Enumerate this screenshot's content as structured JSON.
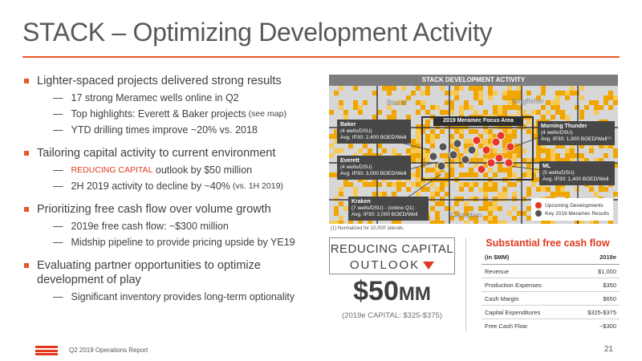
{
  "title": "STACK – Optimizing Development Activity",
  "bullets": [
    {
      "text": "Lighter-spaced projects delivered strong results",
      "subs": [
        {
          "text": "17 strong Meramec wells online in Q2",
          "small": ""
        },
        {
          "text": "Top highlights: Everett & Baker projects",
          "small": "(see map)"
        },
        {
          "text": "YTD drilling times improve ~20% vs. 2018",
          "small": ""
        }
      ]
    },
    {
      "text": "Tailoring capital activity to current environment",
      "subs": [
        {
          "red": "REDUCING CAPITAL",
          "text": "outlook by $50 million",
          "small": ""
        },
        {
          "text": "2H 2019 activity to decline by ~40%",
          "small": "(vs. 1H 2019)"
        }
      ]
    },
    {
      "text": "Prioritizing free cash flow over volume growth",
      "subs": [
        {
          "text": "2019e free cash flow: ~$300 million",
          "small": ""
        },
        {
          "text": "Midship pipeline to provide pricing upside by YE19",
          "small": ""
        }
      ]
    },
    {
      "text": "Evaluating partner opportunities to optimize development of play",
      "subs": [
        {
          "text": "Significant inventory provides long-term optionality",
          "small": ""
        }
      ]
    }
  ],
  "map": {
    "header": "STACK DEVELOPMENT ACTIVITY",
    "focus_label": "2019 Meramec Focus Area",
    "counties": [
      "Blaine",
      "Kingfisher",
      "Canadian"
    ],
    "callouts": {
      "baker": {
        "name": "Baker",
        "l1": "(4 wells/DSU)",
        "l2": "Avg. IP30: 2,400 BOED/Well"
      },
      "everett": {
        "name": "Everett",
        "l1": "(4 wells/DSU)",
        "l2": "Avg. IP30: 3,000 BOED/Well"
      },
      "kraken": {
        "name": "Kraken",
        "l1": "(7 wells/DSU) - (online Q1)",
        "l2": "Avg. IP30: 2,000 BOED/Well"
      },
      "morning": {
        "name": "Morning Thunder",
        "l1": "(4 wells/DSU)",
        "l2": "Avg. IP30: 1,900 BOED/Well⁽¹⁾"
      },
      "ml": {
        "name": "ML",
        "l1": "(5 wells/DSU)",
        "l2": "Avg. IP30: 1,400 BOED/Well"
      }
    },
    "legend": {
      "upcoming": "Upcoming Developments",
      "results": "Key 2019 Meramec Results"
    },
    "colors": {
      "upcoming": "#e8372a",
      "results": "#555555",
      "acreage": "#f0a500"
    },
    "footnote": "(1) Normalized for 10,000' laterals."
  },
  "reducing": {
    "line1": "REDUCING CAPITAL",
    "line2": "OUTLOOK",
    "amount": "$50",
    "amount_unit": "MM",
    "sub": "(2019e CAPITAL: $325-$375)"
  },
  "fcf": {
    "title": "Substantial free cash flow",
    "header": [
      "(in $MM)",
      "2019e"
    ],
    "rows": [
      [
        "Revenue",
        "$1,000"
      ],
      [
        "Production Expenses",
        "$350"
      ],
      [
        "Cash Margin",
        "$650"
      ],
      [
        "Capital Expenditures",
        "$325-$375"
      ],
      [
        "Free Cash Flow",
        "~$300"
      ]
    ]
  },
  "footer": {
    "report": "Q2 2019 Operations Report",
    "page": "21"
  },
  "colors": {
    "accent": "#e8572a",
    "red": "#e03a1e"
  }
}
